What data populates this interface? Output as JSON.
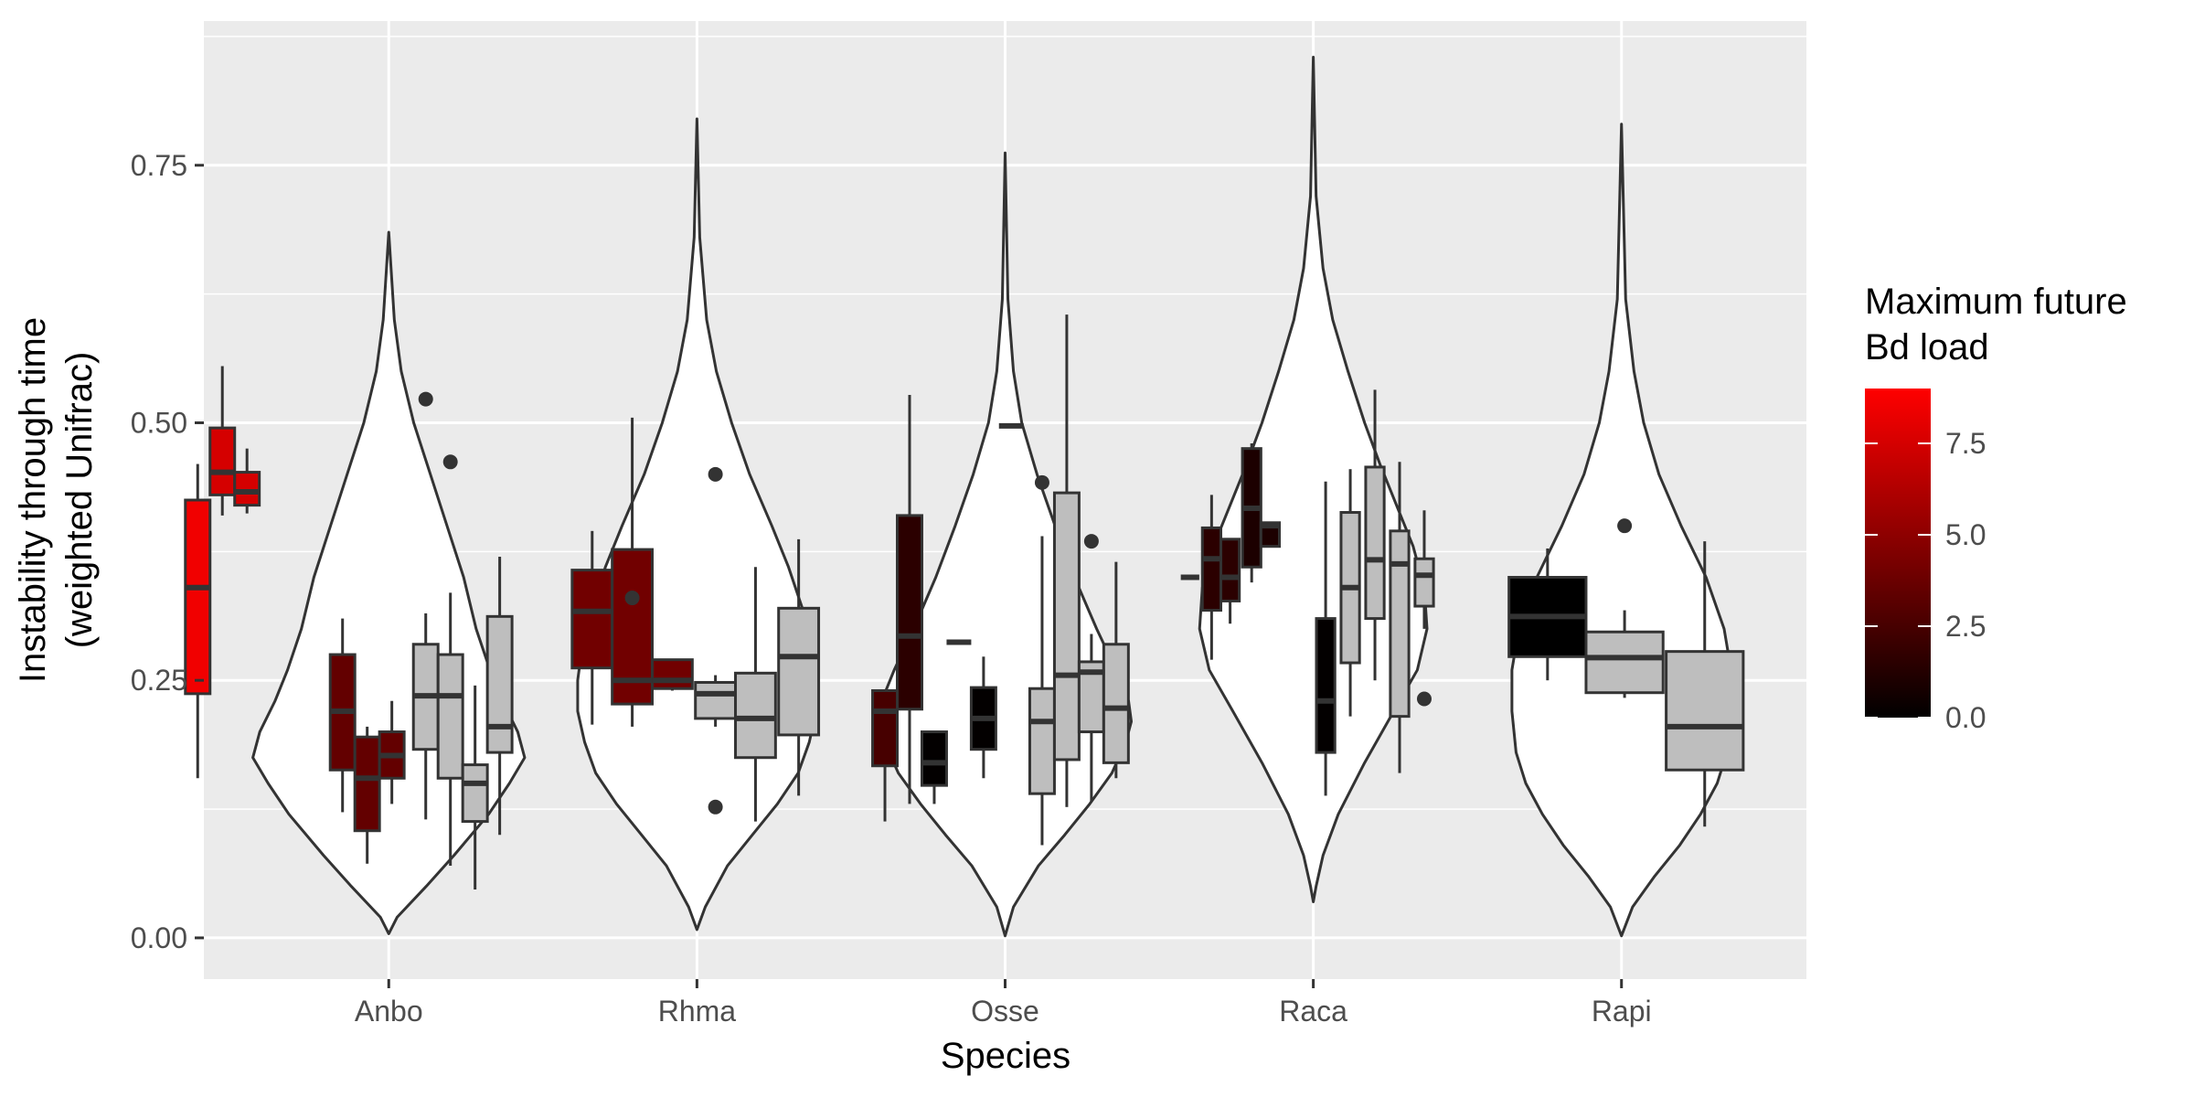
{
  "chart_data": {
    "type": "violin+box",
    "xlabel": "Species",
    "ylabel_line1": "Instability through time",
    "ylabel_line2": "(weighted Unifrac)",
    "categories": [
      "Anbo",
      "Rhma",
      "Osse",
      "Raca",
      "Rapi"
    ],
    "y_ticks": [
      0.0,
      0.25,
      0.5,
      0.75
    ],
    "y_tick_labels": [
      "0.00",
      "0.25",
      "0.50",
      "0.75"
    ],
    "ylim": [
      -0.04,
      0.89
    ],
    "grid": true,
    "legend": {
      "title_line1": "Maximum future",
      "title_line2": "Bd load",
      "placement": "right",
      "range": [
        0,
        9
      ],
      "ticks": [
        0.0,
        2.5,
        5.0,
        7.5
      ],
      "tick_labels": [
        "0.0",
        "2.5",
        "5.0",
        "7.5"
      ],
      "low_color": "#000000",
      "high_color": "#ff0000",
      "na_color": "#bebebe"
    },
    "violins": [
      {
        "species": "Anbo",
        "min": 0.004,
        "max": 0.685,
        "profile": [
          [
            0.004,
            0.0
          ],
          [
            0.02,
            0.06
          ],
          [
            0.05,
            0.27
          ],
          [
            0.08,
            0.47
          ],
          [
            0.12,
            0.72
          ],
          [
            0.15,
            0.87
          ],
          [
            0.175,
            0.98
          ],
          [
            0.2,
            0.93
          ],
          [
            0.23,
            0.82
          ],
          [
            0.26,
            0.73
          ],
          [
            0.3,
            0.63
          ],
          [
            0.35,
            0.54
          ],
          [
            0.4,
            0.42
          ],
          [
            0.45,
            0.3
          ],
          [
            0.5,
            0.18
          ],
          [
            0.55,
            0.09
          ],
          [
            0.6,
            0.04
          ],
          [
            0.685,
            0.0
          ]
        ]
      },
      {
        "species": "Rhma",
        "min": 0.008,
        "max": 0.795,
        "profile": [
          [
            0.008,
            0.0
          ],
          [
            0.03,
            0.06
          ],
          [
            0.07,
            0.22
          ],
          [
            0.1,
            0.4
          ],
          [
            0.13,
            0.58
          ],
          [
            0.16,
            0.73
          ],
          [
            0.19,
            0.81
          ],
          [
            0.22,
            0.86
          ],
          [
            0.25,
            0.86
          ],
          [
            0.28,
            0.83
          ],
          [
            0.32,
            0.76
          ],
          [
            0.36,
            0.66
          ],
          [
            0.4,
            0.54
          ],
          [
            0.45,
            0.38
          ],
          [
            0.5,
            0.25
          ],
          [
            0.55,
            0.14
          ],
          [
            0.6,
            0.07
          ],
          [
            0.68,
            0.02
          ],
          [
            0.795,
            0.0
          ]
        ]
      },
      {
        "species": "Osse",
        "min": 0.002,
        "max": 0.762,
        "profile": [
          [
            0.002,
            0.0
          ],
          [
            0.03,
            0.06
          ],
          [
            0.07,
            0.24
          ],
          [
            0.1,
            0.43
          ],
          [
            0.13,
            0.61
          ],
          [
            0.16,
            0.77
          ],
          [
            0.19,
            0.87
          ],
          [
            0.21,
            0.91
          ],
          [
            0.23,
            0.89
          ],
          [
            0.26,
            0.8
          ],
          [
            0.3,
            0.66
          ],
          [
            0.35,
            0.5
          ],
          [
            0.4,
            0.36
          ],
          [
            0.45,
            0.23
          ],
          [
            0.5,
            0.12
          ],
          [
            0.55,
            0.06
          ],
          [
            0.62,
            0.02
          ],
          [
            0.762,
            0.0
          ]
        ]
      },
      {
        "species": "Raca",
        "min": 0.035,
        "max": 0.855,
        "profile": [
          [
            0.035,
            0.0
          ],
          [
            0.05,
            0.02
          ],
          [
            0.08,
            0.07
          ],
          [
            0.12,
            0.18
          ],
          [
            0.17,
            0.37
          ],
          [
            0.22,
            0.58
          ],
          [
            0.26,
            0.75
          ],
          [
            0.3,
            0.82
          ],
          [
            0.34,
            0.8
          ],
          [
            0.38,
            0.72
          ],
          [
            0.42,
            0.6
          ],
          [
            0.46,
            0.48
          ],
          [
            0.5,
            0.37
          ],
          [
            0.55,
            0.25
          ],
          [
            0.6,
            0.14
          ],
          [
            0.65,
            0.07
          ],
          [
            0.72,
            0.02
          ],
          [
            0.855,
            0.0
          ]
        ]
      },
      {
        "species": "Rapi",
        "min": 0.002,
        "max": 0.79,
        "profile": [
          [
            0.002,
            0.0
          ],
          [
            0.03,
            0.08
          ],
          [
            0.06,
            0.24
          ],
          [
            0.09,
            0.42
          ],
          [
            0.12,
            0.57
          ],
          [
            0.15,
            0.69
          ],
          [
            0.18,
            0.76
          ],
          [
            0.22,
            0.79
          ],
          [
            0.26,
            0.79
          ],
          [
            0.3,
            0.74
          ],
          [
            0.35,
            0.61
          ],
          [
            0.4,
            0.43
          ],
          [
            0.45,
            0.27
          ],
          [
            0.5,
            0.16
          ],
          [
            0.55,
            0.09
          ],
          [
            0.62,
            0.03
          ],
          [
            0.79,
            0.0
          ]
        ]
      }
    ],
    "boxes": [
      {
        "species": "Anbo",
        "position": 0.38,
        "width": 0.08,
        "bd_load": 8.5,
        "whisker_low": 0.155,
        "q1": 0.237,
        "median": 0.34,
        "q3": 0.425,
        "whisker_high": 0.46,
        "outliers": []
      },
      {
        "species": "Anbo",
        "position": 0.46,
        "width": 0.08,
        "bd_load": 7.5,
        "whisker_low": 0.41,
        "q1": 0.43,
        "median": 0.452,
        "q3": 0.495,
        "whisker_high": 0.555,
        "outliers": []
      },
      {
        "species": "Anbo",
        "position": 0.54,
        "width": 0.08,
        "bd_load": 7.5,
        "whisker_low": 0.412,
        "q1": 0.42,
        "median": 0.433,
        "q3": 0.452,
        "whisker_high": 0.475,
        "outliers": []
      },
      {
        "species": "Anbo",
        "position": 0.85,
        "width": 0.08,
        "bd_load": 3.5,
        "whisker_low": 0.122,
        "q1": 0.163,
        "median": 0.22,
        "q3": 0.275,
        "whisker_high": 0.31,
        "outliers": []
      },
      {
        "species": "Anbo",
        "position": 0.93,
        "width": 0.08,
        "bd_load": 3.5,
        "whisker_low": 0.072,
        "q1": 0.104,
        "median": 0.155,
        "q3": 0.195,
        "whisker_high": 0.205,
        "outliers": []
      },
      {
        "species": "Anbo",
        "position": 1.01,
        "width": 0.08,
        "bd_load": 3.5,
        "whisker_low": 0.13,
        "q1": 0.155,
        "median": 0.177,
        "q3": 0.2,
        "whisker_high": 0.23,
        "outliers": []
      },
      {
        "species": "Anbo",
        "position": 1.12,
        "width": 0.08,
        "bd_load": null,
        "whisker_low": 0.115,
        "q1": 0.183,
        "median": 0.235,
        "q3": 0.285,
        "whisker_high": 0.315,
        "outliers": [
          0.523
        ]
      },
      {
        "species": "Anbo",
        "position": 1.2,
        "width": 0.08,
        "bd_load": null,
        "whisker_low": 0.07,
        "q1": 0.155,
        "median": 0.235,
        "q3": 0.275,
        "whisker_high": 0.335,
        "outliers": [
          0.462
        ]
      },
      {
        "species": "Anbo",
        "position": 1.28,
        "width": 0.08,
        "bd_load": null,
        "whisker_low": 0.047,
        "q1": 0.113,
        "median": 0.15,
        "q3": 0.168,
        "whisker_high": 0.245,
        "outliers": []
      },
      {
        "species": "Anbo",
        "position": 1.36,
        "width": 0.08,
        "bd_load": null,
        "whisker_low": 0.1,
        "q1": 0.18,
        "median": 0.205,
        "q3": 0.312,
        "whisker_high": 0.37,
        "outliers": []
      },
      {
        "species": "Rhma",
        "position": 1.66,
        "width": 0.13,
        "bd_load": 4.0,
        "whisker_low": 0.207,
        "q1": 0.262,
        "median": 0.317,
        "q3": 0.357,
        "whisker_high": 0.395,
        "outliers": []
      },
      {
        "species": "Rhma",
        "position": 1.79,
        "width": 0.13,
        "bd_load": 4.0,
        "whisker_low": 0.205,
        "q1": 0.227,
        "median": 0.25,
        "q3": 0.377,
        "whisker_high": 0.505,
        "outliers": [
          0.33
        ]
      },
      {
        "species": "Rhma",
        "position": 1.92,
        "width": 0.13,
        "bd_load": 4.0,
        "whisker_low": 0.24,
        "q1": 0.242,
        "median": 0.25,
        "q3": 0.27,
        "whisker_high": 0.27,
        "outliers": []
      },
      {
        "species": "Rhma",
        "position": 2.06,
        "width": 0.13,
        "bd_load": null,
        "whisker_low": 0.205,
        "q1": 0.213,
        "median": 0.237,
        "q3": 0.248,
        "whisker_high": 0.255,
        "outliers": [
          0.45,
          0.127
        ]
      },
      {
        "species": "Rhma",
        "position": 2.19,
        "width": 0.13,
        "bd_load": null,
        "whisker_low": 0.113,
        "q1": 0.175,
        "median": 0.213,
        "q3": 0.257,
        "whisker_high": 0.36,
        "outliers": []
      },
      {
        "species": "Rhma",
        "position": 2.33,
        "width": 0.13,
        "bd_load": null,
        "whisker_low": 0.138,
        "q1": 0.197,
        "median": 0.273,
        "q3": 0.32,
        "whisker_high": 0.387,
        "outliers": []
      },
      {
        "species": "Osse",
        "position": 2.61,
        "width": 0.08,
        "bd_load": 2.5,
        "whisker_low": 0.113,
        "q1": 0.167,
        "median": 0.22,
        "q3": 0.24,
        "whisker_high": 0.24,
        "outliers": []
      },
      {
        "species": "Osse",
        "position": 2.69,
        "width": 0.08,
        "bd_load": 1.5,
        "whisker_low": 0.13,
        "q1": 0.222,
        "median": 0.293,
        "q3": 0.41,
        "whisker_high": 0.527,
        "outliers": []
      },
      {
        "species": "Osse",
        "position": 2.77,
        "width": 0.08,
        "bd_load": 0.1,
        "whisker_low": 0.13,
        "q1": 0.148,
        "median": 0.17,
        "q3": 0.2,
        "whisker_high": 0.2,
        "outliers": []
      },
      {
        "species": "Osse",
        "position": 2.85,
        "width": 0.08,
        "bd_load": 0.1,
        "whisker_low": 0.287,
        "q1": 0.287,
        "median": 0.287,
        "q3": 0.287,
        "whisker_high": 0.287,
        "outliers": []
      },
      {
        "species": "Osse",
        "position": 2.93,
        "width": 0.08,
        "bd_load": 0.1,
        "whisker_low": 0.155,
        "q1": 0.183,
        "median": 0.213,
        "q3": 0.243,
        "whisker_high": 0.273,
        "outliers": []
      },
      {
        "species": "Osse",
        "position": 3.02,
        "width": 0.08,
        "bd_load": null,
        "whisker_low": 0.497,
        "q1": 0.497,
        "median": 0.497,
        "q3": 0.497,
        "whisker_high": 0.497,
        "outliers": []
      },
      {
        "species": "Osse",
        "position": 3.12,
        "width": 0.08,
        "bd_load": null,
        "whisker_low": 0.09,
        "q1": 0.14,
        "median": 0.21,
        "q3": 0.242,
        "whisker_high": 0.39,
        "outliers": [
          0.442
        ]
      },
      {
        "species": "Osse",
        "position": 3.2,
        "width": 0.08,
        "bd_load": null,
        "whisker_low": 0.127,
        "q1": 0.173,
        "median": 0.255,
        "q3": 0.432,
        "whisker_high": 0.605,
        "outliers": []
      },
      {
        "species": "Osse",
        "position": 3.28,
        "width": 0.08,
        "bd_load": null,
        "whisker_low": 0.132,
        "q1": 0.2,
        "median": 0.258,
        "q3": 0.268,
        "whisker_high": 0.295,
        "outliers": [
          0.385
        ]
      },
      {
        "species": "Osse",
        "position": 3.36,
        "width": 0.08,
        "bd_load": null,
        "whisker_low": 0.155,
        "q1": 0.17,
        "median": 0.223,
        "q3": 0.285,
        "whisker_high": 0.365,
        "outliers": []
      },
      {
        "species": "Raca",
        "position": 3.6,
        "width": 0.06,
        "bd_load": 1.5,
        "whisker_low": 0.35,
        "q1": 0.35,
        "median": 0.35,
        "q3": 0.35,
        "whisker_high": 0.35,
        "outliers": []
      },
      {
        "species": "Raca",
        "position": 3.67,
        "width": 0.06,
        "bd_load": 1.5,
        "whisker_low": 0.27,
        "q1": 0.318,
        "median": 0.368,
        "q3": 0.398,
        "whisker_high": 0.43,
        "outliers": []
      },
      {
        "species": "Raca",
        "position": 3.73,
        "width": 0.06,
        "bd_load": 1.5,
        "whisker_low": 0.305,
        "q1": 0.327,
        "median": 0.35,
        "q3": 0.387,
        "whisker_high": 0.388,
        "outliers": []
      },
      {
        "species": "Raca",
        "position": 3.8,
        "width": 0.06,
        "bd_load": 1.0,
        "whisker_low": 0.345,
        "q1": 0.36,
        "median": 0.417,
        "q3": 0.475,
        "whisker_high": 0.48,
        "outliers": []
      },
      {
        "species": "Raca",
        "position": 3.86,
        "width": 0.06,
        "bd_load": 1.0,
        "whisker_low": 0.38,
        "q1": 0.38,
        "median": 0.4,
        "q3": 0.403,
        "whisker_high": 0.403,
        "outliers": []
      },
      {
        "species": "Raca",
        "position": 4.04,
        "width": 0.06,
        "bd_load": 0.1,
        "whisker_low": 0.138,
        "q1": 0.18,
        "median": 0.23,
        "q3": 0.31,
        "whisker_high": 0.443,
        "outliers": []
      },
      {
        "species": "Raca",
        "position": 4.12,
        "width": 0.06,
        "bd_load": null,
        "whisker_low": 0.215,
        "q1": 0.267,
        "median": 0.34,
        "q3": 0.413,
        "whisker_high": 0.455,
        "outliers": []
      },
      {
        "species": "Raca",
        "position": 4.2,
        "width": 0.06,
        "bd_load": null,
        "whisker_low": 0.25,
        "q1": 0.31,
        "median": 0.367,
        "q3": 0.457,
        "whisker_high": 0.532,
        "outliers": []
      },
      {
        "species": "Raca",
        "position": 4.28,
        "width": 0.06,
        "bd_load": null,
        "whisker_low": 0.16,
        "q1": 0.215,
        "median": 0.363,
        "q3": 0.395,
        "whisker_high": 0.462,
        "outliers": []
      },
      {
        "species": "Raca",
        "position": 4.36,
        "width": 0.06,
        "bd_load": null,
        "whisker_low": 0.3,
        "q1": 0.322,
        "median": 0.352,
        "q3": 0.368,
        "whisker_high": 0.415,
        "outliers": [
          0.232
        ]
      },
      {
        "species": "Rapi",
        "position": 4.76,
        "width": 0.25,
        "bd_load": 0.0,
        "whisker_low": 0.25,
        "q1": 0.273,
        "median": 0.312,
        "q3": 0.35,
        "whisker_high": 0.378,
        "outliers": []
      },
      {
        "species": "Rapi",
        "position": 5.01,
        "width": 0.25,
        "bd_load": null,
        "whisker_low": 0.233,
        "q1": 0.238,
        "median": 0.272,
        "q3": 0.297,
        "whisker_high": 0.318,
        "outliers": [
          0.4
        ]
      },
      {
        "species": "Rapi",
        "position": 5.27,
        "width": 0.25,
        "bd_load": null,
        "whisker_low": 0.108,
        "q1": 0.163,
        "median": 0.205,
        "q3": 0.278,
        "whisker_high": 0.385,
        "outliers": []
      }
    ]
  }
}
